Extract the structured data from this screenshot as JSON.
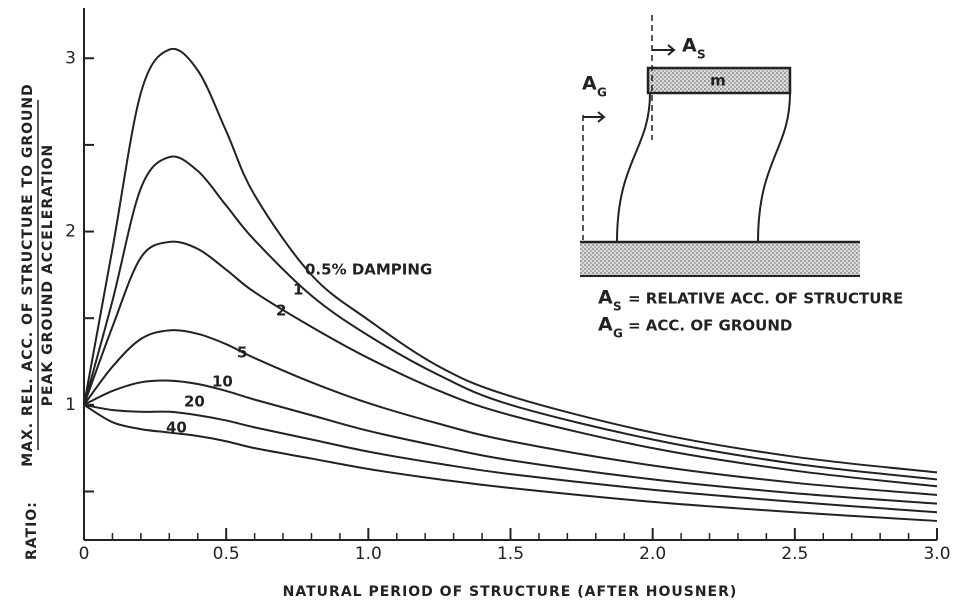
{
  "chart_data": {
    "type": "line",
    "x_label": "NATURAL PERIOD OF STRUCTURE (AFTER HOUSNER)",
    "y_label_prefix": "RATIO:",
    "y_label_numerator": "MAX. REL. ACC. OF STRUCTURE TO GROUND",
    "y_label_denominator": "PEAK GROUND ACCELERATION",
    "x": [
      0,
      0.1,
      0.2,
      0.3,
      0.4,
      0.5,
      0.6,
      0.8,
      1.0,
      1.25,
      1.5,
      2.0,
      2.5,
      3.0
    ],
    "series": [
      {
        "name": "0.5% DAMPING",
        "color": "#222",
        "values": [
          1,
          1.9,
          2.8,
          3.05,
          2.93,
          2.58,
          2.21,
          1.75,
          1.49,
          1.22,
          1.05,
          0.84,
          0.7,
          0.61
        ]
      },
      {
        "name": "1",
        "color": "#222",
        "values": [
          1,
          1.6,
          2.25,
          2.43,
          2.35,
          2.15,
          1.95,
          1.63,
          1.4,
          1.17,
          1.0,
          0.8,
          0.66,
          0.57
        ]
      },
      {
        "name": "2",
        "color": "#222",
        "values": [
          1,
          1.45,
          1.85,
          1.94,
          1.9,
          1.78,
          1.65,
          1.45,
          1.27,
          1.08,
          0.94,
          0.75,
          0.62,
          0.53
        ]
      },
      {
        "name": "5",
        "color": "#222",
        "values": [
          1,
          1.22,
          1.38,
          1.43,
          1.41,
          1.35,
          1.27,
          1.13,
          1.01,
          0.89,
          0.79,
          0.65,
          0.55,
          0.48
        ]
      },
      {
        "name": "10",
        "color": "#222",
        "values": [
          1,
          1.08,
          1.13,
          1.14,
          1.12,
          1.08,
          1.03,
          0.94,
          0.85,
          0.76,
          0.68,
          0.57,
          0.49,
          0.43
        ]
      },
      {
        "name": "20",
        "color": "#222",
        "values": [
          1,
          0.97,
          0.96,
          0.96,
          0.94,
          0.91,
          0.87,
          0.8,
          0.73,
          0.66,
          0.6,
          0.51,
          0.44,
          0.38
        ]
      },
      {
        "name": "40",
        "color": "#222",
        "values": [
          1,
          0.9,
          0.86,
          0.84,
          0.82,
          0.79,
          0.75,
          0.69,
          0.63,
          0.57,
          0.52,
          0.44,
          0.38,
          0.33
        ]
      }
    ],
    "xlim": [
      0,
      3.0
    ],
    "ylim": [
      0.22,
      3.29
    ],
    "xticks": [
      0,
      0.5,
      {
        "value": 1.0,
        "label": "1.0"
      },
      1.5,
      {
        "value": 2.0,
        "label": "2.0"
      },
      2.5,
      {
        "value": 3.0,
        "label": "3.0"
      }
    ],
    "xminor": [
      0.1,
      0.2,
      0.3,
      0.4,
      0.6,
      0.7,
      0.8,
      0.9,
      1.1,
      1.2,
      1.3,
      1.4,
      1.6,
      1.7,
      1.8,
      1.9,
      2.1,
      2.2,
      2.3,
      2.4,
      2.6,
      2.7,
      2.8,
      2.9
    ],
    "yticks": [
      1,
      2,
      3
    ],
    "yminor": [
      0.5,
      1.5,
      2.5
    ],
    "inset": {
      "mass": "m",
      "structure_symbol": "A",
      "structure_sub": "S",
      "ground_symbol": "A",
      "ground_sub": "G",
      "structure_text": "= RELATIVE ACC. OF STRUCTURE",
      "ground_text": "= ACC. OF GROUND"
    }
  }
}
